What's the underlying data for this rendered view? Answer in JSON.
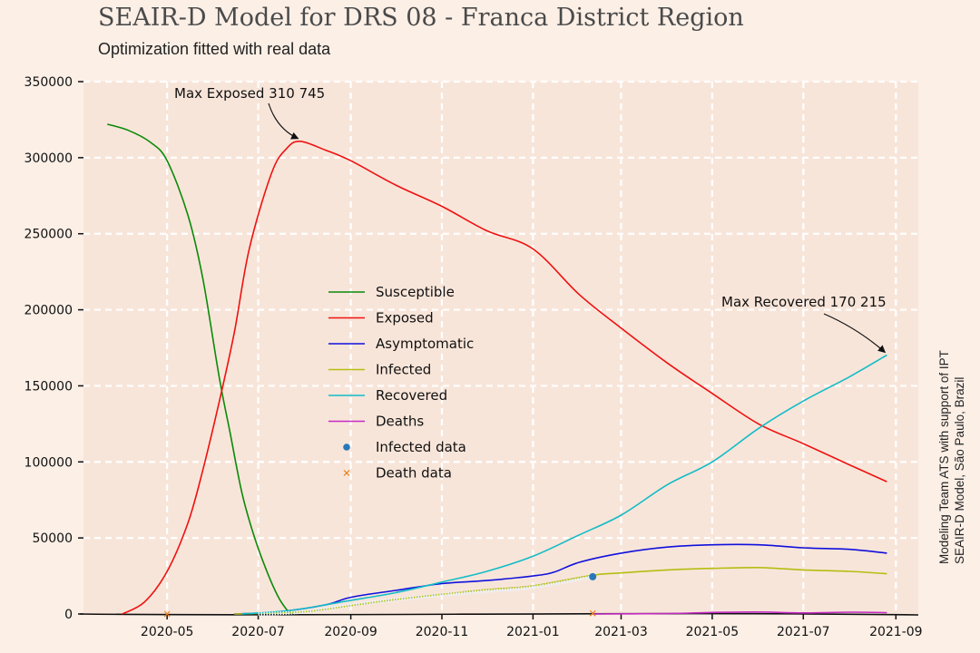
{
  "title": "SEAIR-D Model for DRS 08 - Franca District Region",
  "subtitle": "Optimization fitted with real data",
  "side_note": [
    "Modeling Team ATS with support of IPT",
    "SEAIR-D Model, São Paulo, Brazil"
  ],
  "colors": {
    "Susceptible": "#0a8a0a",
    "Exposed": "#ee1111",
    "Asymptomatic": "#1010dd",
    "Infected": "#b5bd12",
    "Recovered": "#12bcc8",
    "Deaths": "#c42bc4",
    "Infected data": "#2878b8",
    "Death data": "#e8801a"
  },
  "chart_data": {
    "type": "line",
    "title": "SEAIR-D Model for DRS 08 - Franca District Region",
    "subtitle": "Optimization fitted with real data",
    "xlabel": "",
    "ylabel": "",
    "xlim": [
      "2020-03-06",
      "2021-09-16"
    ],
    "ylim": [
      0,
      350000
    ],
    "grid": true,
    "legend_placement": "center",
    "x_ticks": [
      "2020-05-01",
      "2020-07-01",
      "2020-09-01",
      "2020-11-01",
      "2021-01-01",
      "2021-03-01",
      "2021-05-01",
      "2021-07-01",
      "2021-09-01"
    ],
    "x_tick_labels": [
      "2020-05",
      "2020-07",
      "2020-09",
      "2020-11",
      "2021-01",
      "2021-03",
      "2021-05",
      "2021-07",
      "2021-09"
    ],
    "y_ticks": [
      0,
      50000,
      100000,
      150000,
      200000,
      250000,
      300000,
      350000
    ],
    "y_tick_labels": [
      "0",
      "50000",
      "100000",
      "150000",
      "200000",
      "250000",
      "300000",
      "350000"
    ],
    "series": [
      {
        "name": "Susceptible",
        "kind": "line",
        "points": [
          [
            "2020-03-22",
            322000
          ],
          [
            "2020-04-05",
            318000
          ],
          [
            "2020-04-20",
            310000
          ],
          [
            "2020-05-01",
            298000
          ],
          [
            "2020-05-15",
            262000
          ],
          [
            "2020-05-25",
            220000
          ],
          [
            "2020-06-05",
            155000
          ],
          [
            "2020-06-12",
            120000
          ],
          [
            "2020-06-20",
            80000
          ],
          [
            "2020-06-28",
            52000
          ],
          [
            "2020-07-06",
            30000
          ],
          [
            "2020-07-14",
            12000
          ],
          [
            "2020-07-20",
            3000
          ],
          [
            "2020-07-24",
            0
          ]
        ]
      },
      {
        "name": "Exposed",
        "kind": "line",
        "points": [
          [
            "2020-04-01",
            0
          ],
          [
            "2020-04-16",
            8000
          ],
          [
            "2020-05-01",
            28000
          ],
          [
            "2020-05-15",
            60000
          ],
          [
            "2020-05-25",
            95000
          ],
          [
            "2020-06-05",
            140000
          ],
          [
            "2020-06-15",
            185000
          ],
          [
            "2020-06-25",
            240000
          ],
          [
            "2020-07-10",
            290000
          ],
          [
            "2020-07-20",
            306000
          ],
          [
            "2020-07-29",
            310745
          ],
          [
            "2020-08-15",
            305000
          ],
          [
            "2020-09-01",
            298000
          ],
          [
            "2020-10-01",
            282000
          ],
          [
            "2020-11-01",
            268000
          ],
          [
            "2020-12-01",
            252000
          ],
          [
            "2021-01-01",
            240000
          ],
          [
            "2021-02-01",
            210000
          ],
          [
            "2021-03-01",
            188000
          ],
          [
            "2021-04-01",
            165000
          ],
          [
            "2021-05-01",
            145000
          ],
          [
            "2021-06-01",
            125000
          ],
          [
            "2021-07-01",
            112000
          ],
          [
            "2021-08-01",
            98000
          ],
          [
            "2021-08-26",
            87000
          ]
        ]
      },
      {
        "name": "Asymptomatic",
        "kind": "line",
        "points": [
          [
            "2020-06-15",
            0
          ],
          [
            "2020-07-15",
            1500
          ],
          [
            "2020-08-15",
            6000
          ],
          [
            "2020-09-01",
            11000
          ],
          [
            "2020-10-01",
            15500
          ],
          [
            "2020-11-01",
            20000
          ],
          [
            "2020-12-01",
            22000
          ],
          [
            "2021-01-01",
            25000
          ],
          [
            "2021-01-15",
            27500
          ],
          [
            "2021-02-01",
            34000
          ],
          [
            "2021-03-01",
            40000
          ],
          [
            "2021-04-01",
            44000
          ],
          [
            "2021-05-01",
            45500
          ],
          [
            "2021-06-01",
            45500
          ],
          [
            "2021-07-01",
            43500
          ],
          [
            "2021-08-01",
            42500
          ],
          [
            "2021-08-26",
            40000
          ]
        ]
      },
      {
        "name": "Infected",
        "kind": "line",
        "points": [
          [
            "2020-06-15",
            0
          ],
          [
            "2020-08-01",
            1500
          ],
          [
            "2020-09-01",
            5500
          ],
          [
            "2020-10-01",
            9500
          ],
          [
            "2020-11-01",
            13000
          ],
          [
            "2020-12-01",
            16000
          ],
          [
            "2021-01-01",
            18500
          ],
          [
            "2021-02-10",
            25500
          ],
          [
            "2021-03-01",
            27000
          ],
          [
            "2021-04-01",
            29000
          ],
          [
            "2021-05-01",
            30000
          ],
          [
            "2021-06-01",
            30500
          ],
          [
            "2021-07-01",
            29000
          ],
          [
            "2021-08-01",
            28000
          ],
          [
            "2021-08-26",
            26500
          ]
        ]
      },
      {
        "name": "Recovered",
        "kind": "line",
        "points": [
          [
            "2020-06-20",
            0
          ],
          [
            "2020-07-20",
            2000
          ],
          [
            "2020-08-15",
            6000
          ],
          [
            "2020-09-01",
            9000
          ],
          [
            "2020-10-01",
            14000
          ],
          [
            "2020-11-01",
            21000
          ],
          [
            "2020-12-01",
            28000
          ],
          [
            "2021-01-01",
            38000
          ],
          [
            "2021-02-01",
            52000
          ],
          [
            "2021-03-01",
            65000
          ],
          [
            "2021-04-01",
            85000
          ],
          [
            "2021-05-01",
            100000
          ],
          [
            "2021-06-01",
            122000
          ],
          [
            "2021-07-01",
            140000
          ],
          [
            "2021-08-01",
            156000
          ],
          [
            "2021-08-26",
            170215
          ]
        ]
      },
      {
        "name": "Deaths",
        "kind": "line",
        "points": [
          [
            "2021-02-10",
            0
          ],
          [
            "2021-04-01",
            300
          ],
          [
            "2021-05-01",
            1000
          ],
          [
            "2021-06-01",
            1300
          ],
          [
            "2021-07-01",
            700
          ],
          [
            "2021-08-01",
            1200
          ],
          [
            "2021-08-26",
            900
          ]
        ]
      },
      {
        "name": "Infected data",
        "kind": "scatter",
        "points": [
          [
            "2020-07-01",
            0
          ],
          [
            "2020-08-01",
            1500
          ],
          [
            "2020-09-01",
            6000
          ],
          [
            "2020-10-01",
            9500
          ],
          [
            "2020-11-01",
            12500
          ],
          [
            "2020-12-01",
            15000
          ],
          [
            "2021-01-01",
            17500
          ],
          [
            "2021-02-10",
            24500
          ]
        ]
      },
      {
        "name": "Death data",
        "kind": "scatter",
        "points": [
          [
            "2020-05-01",
            0
          ],
          [
            "2021-02-10",
            400
          ]
        ]
      }
    ],
    "annotations": [
      {
        "text": "Max Exposed 310 745",
        "x": "2020-07-29",
        "y": 310745
      },
      {
        "text": "Max Recovered 170 215",
        "x": "2021-08-26",
        "y": 170215
      }
    ]
  }
}
